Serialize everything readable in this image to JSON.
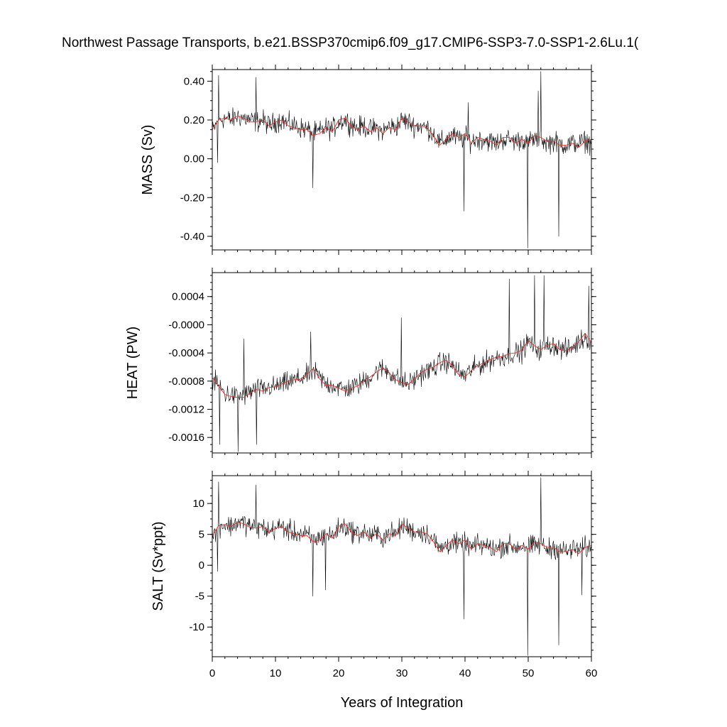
{
  "figure_title": "Northwest Passage Transports, b.e21.BSSP370cmip6.f09_g17.CMIP6-SSP3-7.0-SSP1-2.6Lu.1(",
  "colors": {
    "raw_series": "#000000",
    "smoothed_series": "#e8322a"
  },
  "chart_data": [
    {
      "type": "line",
      "ylabel": "MASS (Sv)",
      "xlim": [
        0,
        60
      ],
      "ylim": [
        -0.47,
        0.46
      ],
      "yticks": [
        0.4,
        0.2,
        0.0,
        -0.2,
        -0.4
      ],
      "ytick_labels": [
        "0.40",
        "0.20",
        "0.00",
        "-0.20",
        "-0.40"
      ],
      "xticks": [
        0,
        10,
        20,
        30,
        40,
        50,
        60
      ],
      "xtick_labels": [
        "0",
        "10",
        "20",
        "30",
        "40",
        "50",
        "60"
      ],
      "grid": false,
      "series": [
        {
          "role": "monthly",
          "x": [
            0,
            1,
            2,
            3,
            4,
            5,
            6,
            7,
            8,
            9,
            10,
            11,
            12,
            13,
            14,
            15,
            16,
            17,
            18,
            19,
            20,
            21,
            22,
            23,
            24,
            25,
            26,
            27,
            28,
            29,
            30,
            31,
            32,
            33,
            34,
            35,
            36,
            37,
            38,
            39,
            40,
            41,
            42,
            43,
            44,
            45,
            46,
            47,
            48,
            49,
            50,
            51,
            52,
            53,
            54,
            55,
            56,
            57,
            58,
            59,
            60
          ],
          "y": [
            0.14,
            0.2,
            0.21,
            0.2,
            0.22,
            0.21,
            0.2,
            0.19,
            0.2,
            0.17,
            0.19,
            0.2,
            0.18,
            0.17,
            0.16,
            0.15,
            0.13,
            0.14,
            0.16,
            0.15,
            0.19,
            0.2,
            0.18,
            0.16,
            0.17,
            0.15,
            0.16,
            0.14,
            0.17,
            0.16,
            0.2,
            0.19,
            0.17,
            0.17,
            0.16,
            0.13,
            0.08,
            0.1,
            0.12,
            0.1,
            0.11,
            0.09,
            0.1,
            0.1,
            0.09,
            0.08,
            0.1,
            0.1,
            0.09,
            0.1,
            0.09,
            0.1,
            0.1,
            0.08,
            0.09,
            0.08,
            0.07,
            0.08,
            0.08,
            0.09,
            0.08
          ],
          "extremes": [
            [
              1.0,
              0.43
            ],
            [
              0.8,
              -0.02
            ],
            [
              15.9,
              -0.15
            ],
            [
              39.8,
              -0.27
            ],
            [
              49.9,
              -0.46
            ],
            [
              52.0,
              0.45
            ],
            [
              54.8,
              -0.4
            ],
            [
              6.9,
              0.42
            ],
            [
              40.5,
              0.29
            ],
            [
              51.6,
              0.35
            ]
          ]
        },
        {
          "role": "annual-smooth",
          "x": [
            0,
            1,
            2,
            3,
            4,
            5,
            6,
            7,
            8,
            9,
            10,
            11,
            12,
            13,
            14,
            15,
            16,
            17,
            18,
            19,
            20,
            21,
            22,
            23,
            24,
            25,
            26,
            27,
            28,
            29,
            30,
            31,
            32,
            33,
            34,
            35,
            36,
            37,
            38,
            39,
            40,
            41,
            42,
            43,
            44,
            45,
            46,
            47,
            48,
            49,
            50,
            51,
            52,
            53,
            54,
            55,
            56,
            57,
            58,
            59,
            60
          ],
          "y": [
            0.15,
            0.2,
            0.21,
            0.2,
            0.22,
            0.21,
            0.19,
            0.19,
            0.2,
            0.17,
            0.19,
            0.2,
            0.17,
            0.16,
            0.15,
            0.15,
            0.12,
            0.13,
            0.16,
            0.14,
            0.2,
            0.21,
            0.17,
            0.15,
            0.17,
            0.14,
            0.16,
            0.13,
            0.16,
            0.15,
            0.21,
            0.19,
            0.17,
            0.17,
            0.16,
            0.12,
            0.07,
            0.1,
            0.13,
            0.11,
            0.13,
            0.08,
            0.11,
            0.1,
            0.09,
            0.07,
            0.11,
            0.11,
            0.08,
            0.1,
            0.08,
            0.12,
            0.11,
            0.09,
            0.09,
            0.07,
            0.07,
            0.08,
            0.06,
            0.09,
            0.1
          ]
        }
      ]
    },
    {
      "type": "line",
      "ylabel": "HEAT (PW)",
      "xlim": [
        0,
        60
      ],
      "ylim": [
        -0.00182,
        0.00074
      ],
      "yticks": [
        0.0004,
        0.0,
        -0.0004,
        -0.0008,
        -0.0012,
        -0.0016
      ],
      "ytick_labels": [
        "0.0004",
        "-0.0000",
        "-0.0004",
        "-0.0008",
        "-0.0012",
        "-0.0016"
      ],
      "xticks": [
        0,
        10,
        20,
        30,
        40,
        50,
        60
      ],
      "xtick_labels": [
        "0",
        "10",
        "20",
        "30",
        "40",
        "50",
        "60"
      ],
      "grid": false,
      "series": [
        {
          "role": "monthly",
          "x": [
            0,
            1,
            2,
            3,
            4,
            5,
            6,
            7,
            8,
            9,
            10,
            11,
            12,
            13,
            14,
            15,
            16,
            17,
            18,
            19,
            20,
            21,
            22,
            23,
            24,
            25,
            26,
            27,
            28,
            29,
            30,
            31,
            32,
            33,
            34,
            35,
            36,
            37,
            38,
            39,
            40,
            41,
            42,
            43,
            44,
            45,
            46,
            47,
            48,
            49,
            50,
            51,
            52,
            53,
            54,
            55,
            56,
            57,
            58,
            59,
            60
          ],
          "y": [
            -0.0008,
            -0.00085,
            -0.00098,
            -0.001,
            -0.00102,
            -0.00101,
            -0.00096,
            -0.0009,
            -0.00093,
            -0.00089,
            -0.00088,
            -0.00085,
            -0.00082,
            -0.00079,
            -0.00076,
            -0.00072,
            -0.00066,
            -0.00075,
            -0.00084,
            -0.00086,
            -0.00089,
            -0.00092,
            -0.00089,
            -0.00086,
            -0.0008,
            -0.00074,
            -0.00066,
            -0.00062,
            -0.00067,
            -0.00075,
            -0.00081,
            -0.00084,
            -0.00078,
            -0.0007,
            -0.00066,
            -0.00061,
            -0.00055,
            -0.00052,
            -0.00058,
            -0.00068,
            -0.00072,
            -0.00064,
            -0.00058,
            -0.00055,
            -0.0005,
            -0.00047,
            -0.00046,
            -0.00042,
            -0.0004,
            -0.00038,
            -0.00024,
            -0.00032,
            -0.00036,
            -0.0003,
            -0.00028,
            -0.00034,
            -0.00036,
            -0.00032,
            -0.00025,
            -0.00018,
            -0.00022
          ],
          "extremes": [
            [
              4.1,
              -0.0018
            ],
            [
              1.2,
              -0.0017
            ],
            [
              7.0,
              -0.0017
            ],
            [
              5.0,
              -0.0002
            ],
            [
              15.6,
              -0.0001
            ],
            [
              47.0,
              0.00065
            ],
            [
              51.0,
              0.0007
            ],
            [
              52.5,
              0.0007
            ],
            [
              59.6,
              0.00055
            ],
            [
              29.9,
              0.0001
            ]
          ]
        },
        {
          "role": "annual-smooth",
          "x": [
            0,
            1,
            2,
            3,
            4,
            5,
            6,
            7,
            8,
            9,
            10,
            11,
            12,
            13,
            14,
            15,
            16,
            17,
            18,
            19,
            20,
            21,
            22,
            23,
            24,
            25,
            26,
            27,
            28,
            29,
            30,
            31,
            32,
            33,
            34,
            35,
            36,
            37,
            38,
            39,
            40,
            41,
            42,
            43,
            44,
            45,
            46,
            47,
            48,
            49,
            50,
            51,
            52,
            53,
            54,
            55,
            56,
            57,
            58,
            59,
            60
          ],
          "y": [
            -0.00075,
            -0.00087,
            -0.00099,
            -0.00102,
            -0.00103,
            -0.00103,
            -0.00097,
            -0.00092,
            -0.00094,
            -0.00089,
            -0.00088,
            -0.00084,
            -0.0008,
            -0.00078,
            -0.00077,
            -0.0007,
            -0.00062,
            -0.00077,
            -0.00086,
            -0.00086,
            -0.0009,
            -0.00094,
            -0.0009,
            -0.00087,
            -0.00079,
            -0.00074,
            -0.00067,
            -0.00061,
            -0.00068,
            -0.00078,
            -0.00082,
            -0.00085,
            -0.00077,
            -0.00068,
            -0.00063,
            -0.0006,
            -0.00054,
            -0.0005,
            -0.00058,
            -0.00071,
            -0.00074,
            -0.00065,
            -0.00058,
            -0.00054,
            -0.00049,
            -0.00046,
            -0.00045,
            -0.00041,
            -0.0004,
            -0.00036,
            -0.00022,
            -0.0003,
            -0.00035,
            -0.00029,
            -0.00027,
            -0.00035,
            -0.00037,
            -0.00032,
            -0.00024,
            -0.00012,
            -0.00025
          ]
        }
      ]
    },
    {
      "type": "line",
      "ylabel": "SALT (Sv*ppt)",
      "xlim": [
        0,
        60
      ],
      "ylim": [
        -14.8,
        14.5
      ],
      "yticks": [
        10,
        5,
        0,
        -5,
        -10
      ],
      "ytick_labels": [
        "10",
        "5",
        "0",
        "-5",
        "-10"
      ],
      "xticks": [
        0,
        10,
        20,
        30,
        40,
        50,
        60
      ],
      "xtick_labels": [
        "0",
        "10",
        "20",
        "30",
        "40",
        "50",
        "60"
      ],
      "xlabel": "Years of Integration",
      "grid": false,
      "series": [
        {
          "role": "monthly",
          "x": [
            0,
            1,
            2,
            3,
            4,
            5,
            6,
            7,
            8,
            9,
            10,
            11,
            12,
            13,
            14,
            15,
            16,
            17,
            18,
            19,
            20,
            21,
            22,
            23,
            24,
            25,
            26,
            27,
            28,
            29,
            30,
            31,
            32,
            33,
            34,
            35,
            36,
            37,
            38,
            39,
            40,
            41,
            42,
            43,
            44,
            45,
            46,
            47,
            48,
            49,
            50,
            51,
            52,
            53,
            54,
            55,
            56,
            57,
            58,
            59,
            60
          ],
          "y": [
            4.5,
            6.4,
            6.6,
            6.3,
            7.0,
            6.8,
            6.4,
            6.0,
            6.2,
            5.4,
            6.0,
            6.3,
            5.6,
            5.3,
            5.0,
            4.8,
            4.2,
            4.4,
            5.0,
            4.7,
            6.0,
            6.3,
            5.6,
            5.1,
            5.4,
            4.8,
            5.0,
            4.5,
            5.3,
            5.0,
            6.3,
            6.0,
            5.4,
            5.4,
            5.1,
            4.1,
            2.6,
            3.2,
            3.8,
            3.2,
            3.5,
            2.9,
            3.2,
            3.2,
            2.9,
            2.6,
            3.2,
            3.2,
            2.9,
            3.2,
            2.9,
            3.2,
            3.2,
            2.6,
            2.9,
            2.6,
            2.2,
            2.6,
            2.6,
            2.9,
            2.6
          ],
          "extremes": [
            [
              1.0,
              13.5
            ],
            [
              0.8,
              -1.0
            ],
            [
              15.9,
              -5.0
            ],
            [
              17.9,
              -4.0
            ],
            [
              39.8,
              -8.7
            ],
            [
              49.9,
              -14.6
            ],
            [
              52.0,
              14.2
            ],
            [
              54.8,
              -12.9
            ],
            [
              6.9,
              13.0
            ],
            [
              58.5,
              -4.8
            ]
          ]
        },
        {
          "role": "annual-smooth",
          "x": [
            0,
            1,
            2,
            3,
            4,
            5,
            6,
            7,
            8,
            9,
            10,
            11,
            12,
            13,
            14,
            15,
            16,
            17,
            18,
            19,
            20,
            21,
            22,
            23,
            24,
            25,
            26,
            27,
            28,
            29,
            30,
            31,
            32,
            33,
            34,
            35,
            36,
            37,
            38,
            39,
            40,
            41,
            42,
            43,
            44,
            45,
            46,
            47,
            48,
            49,
            50,
            51,
            52,
            53,
            54,
            55,
            56,
            57,
            58,
            59,
            60
          ],
          "y": [
            4.8,
            6.4,
            6.6,
            6.3,
            7.0,
            6.7,
            6.1,
            6.0,
            6.3,
            5.4,
            6.0,
            6.3,
            5.4,
            5.1,
            4.8,
            4.8,
            3.8,
            4.1,
            5.1,
            4.4,
            6.3,
            6.7,
            5.4,
            4.8,
            5.4,
            4.4,
            5.1,
            4.1,
            5.1,
            4.8,
            6.7,
            6.0,
            5.4,
            5.4,
            5.1,
            3.8,
            2.2,
            3.2,
            4.1,
            3.5,
            4.1,
            2.6,
            3.5,
            3.2,
            2.9,
            2.2,
            3.5,
            3.5,
            2.6,
            3.2,
            2.6,
            3.8,
            3.5,
            2.9,
            2.9,
            2.2,
            2.2,
            2.6,
            1.9,
            2.9,
            3.2
          ]
        }
      ]
    }
  ]
}
